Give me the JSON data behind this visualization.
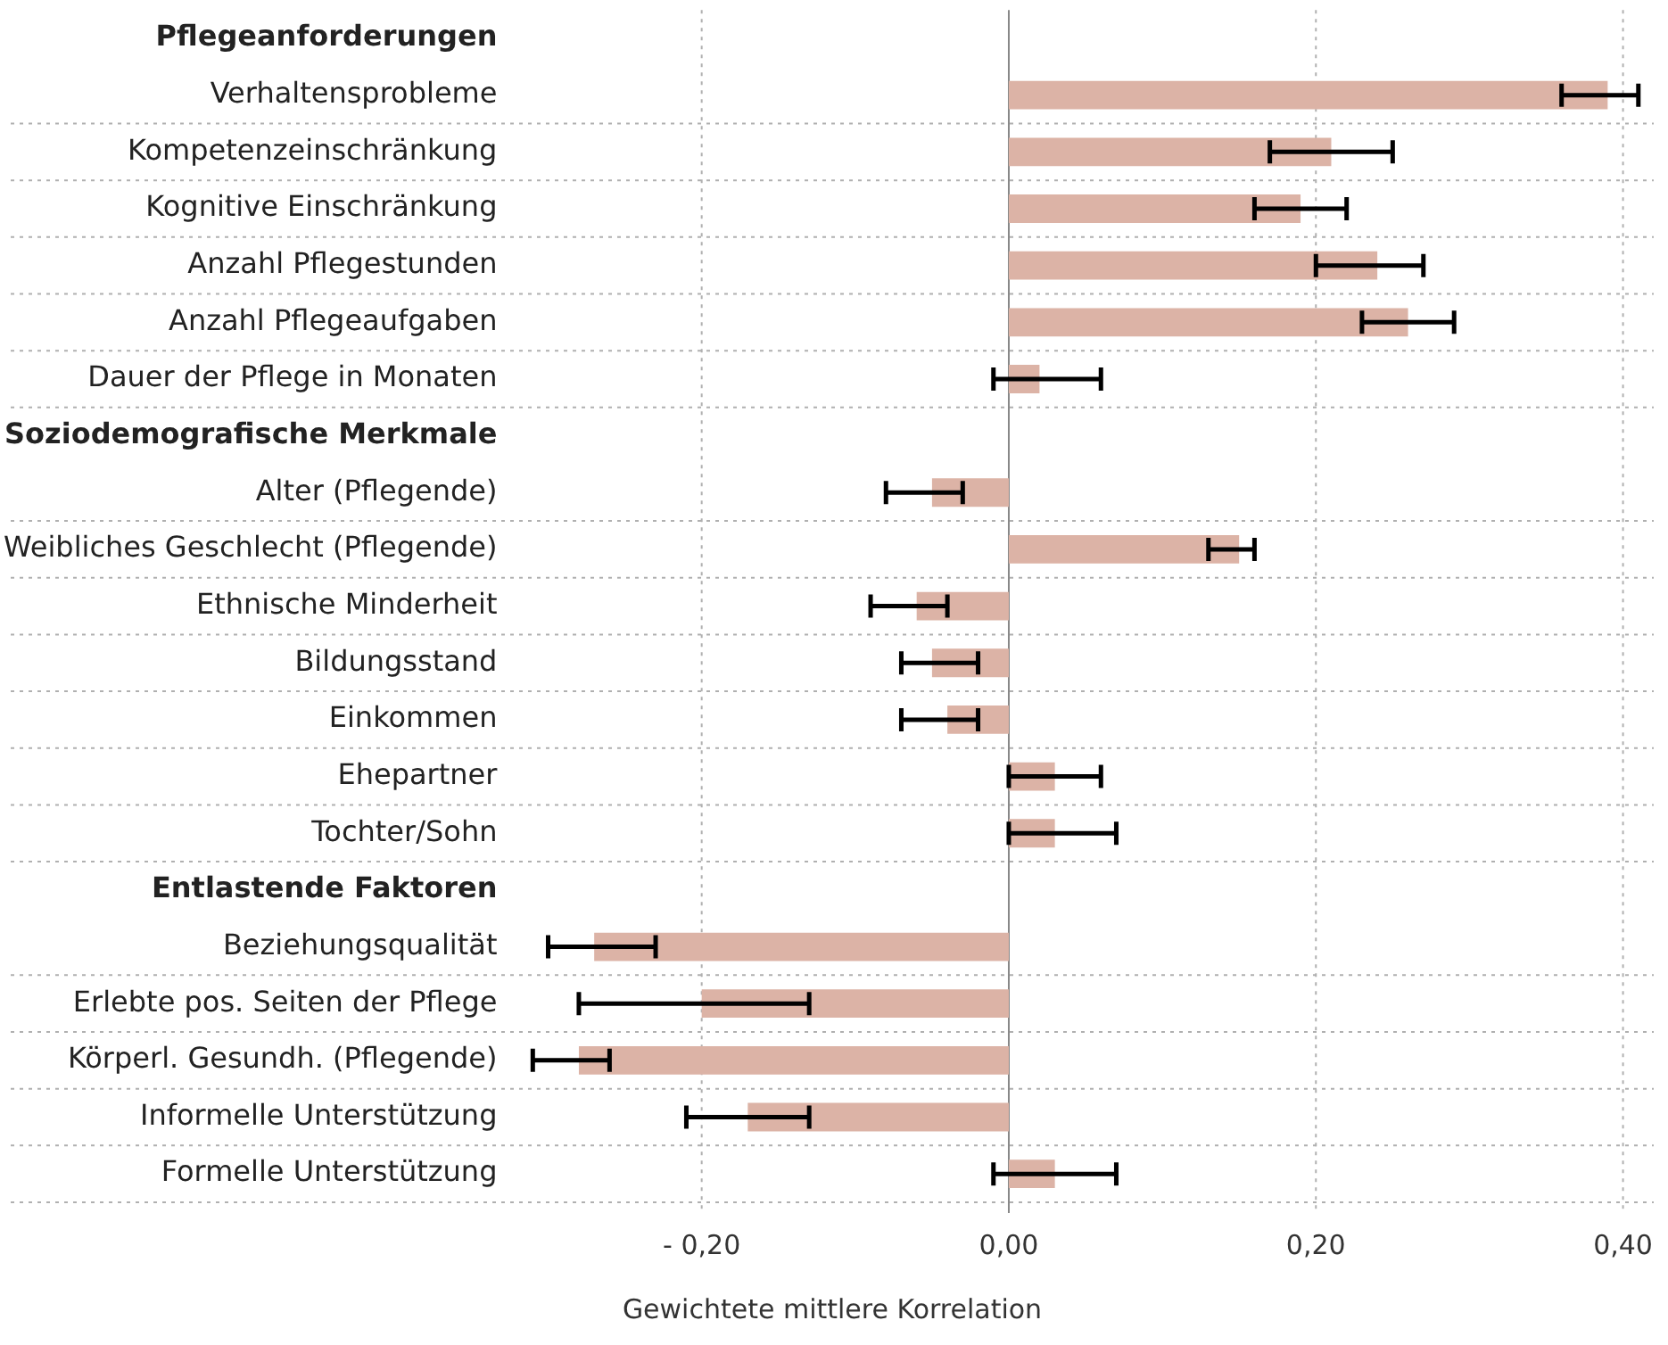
{
  "chart_data": {
    "type": "bar",
    "orientation": "horizontal",
    "xlabel": "Gewichtete mittlere Korrelation",
    "categories": [
      "Pflegeanforderungen",
      "Verhaltensprobleme",
      "Kompetenzeinschränkung",
      "Kognitive Einschränkung",
      "Anzahl Pflegestunden",
      "Anzahl Pflegeaufgaben",
      "Dauer der Pflege in Monaten",
      "Soziodemografische Merkmale",
      "Alter (Pflegende)",
      "Weibliches Geschlecht (Pflegende)",
      "Ethnische Minderheit",
      "Bildungsstand",
      "Einkommen",
      "Ehepartner",
      "Tochter/Sohn",
      "Entlastende Faktoren",
      "Beziehungsqualität",
      "Erlebte pos. Seiten der Pflege",
      "Körperl. Gesundh. (Pflegende)",
      "Informelle Unterstützung",
      "Formelle Unterstützung"
    ],
    "values": [
      null,
      0.39,
      0.21,
      0.19,
      0.24,
      0.26,
      0.02,
      null,
      -0.05,
      0.15,
      -0.06,
      -0.05,
      -0.04,
      0.03,
      0.03,
      null,
      -0.27,
      -0.2,
      -0.28,
      -0.17,
      0.03
    ],
    "errors": [
      null,
      [
        0.36,
        0.41
      ],
      [
        0.17,
        0.25
      ],
      [
        0.16,
        0.22
      ],
      [
        0.2,
        0.27
      ],
      [
        0.23,
        0.29
      ],
      [
        -0.01,
        0.06
      ],
      null,
      [
        -0.08,
        -0.03
      ],
      [
        0.13,
        0.16
      ],
      [
        -0.09,
        -0.04
      ],
      [
        -0.07,
        -0.02
      ],
      [
        -0.07,
        -0.02
      ],
      [
        0.0,
        0.06
      ],
      [
        0.0,
        0.07
      ],
      null,
      [
        -0.3,
        -0.23
      ],
      [
        -0.28,
        -0.13
      ],
      [
        -0.31,
        -0.26
      ],
      [
        -0.21,
        -0.13
      ],
      [
        -0.01,
        0.07
      ]
    ],
    "color": "#dcb3a6",
    "xlim": [
      -0.65,
      0.42
    ],
    "xticks": [
      {
        "value": -0.2,
        "label": "- 0,20"
      },
      {
        "value": 0,
        "label": "0,00"
      },
      {
        "value": 0.2,
        "label": "0,20"
      },
      {
        "value": 0.4,
        "label": "0,40"
      }
    ],
    "grid": true,
    "legend": false
  }
}
